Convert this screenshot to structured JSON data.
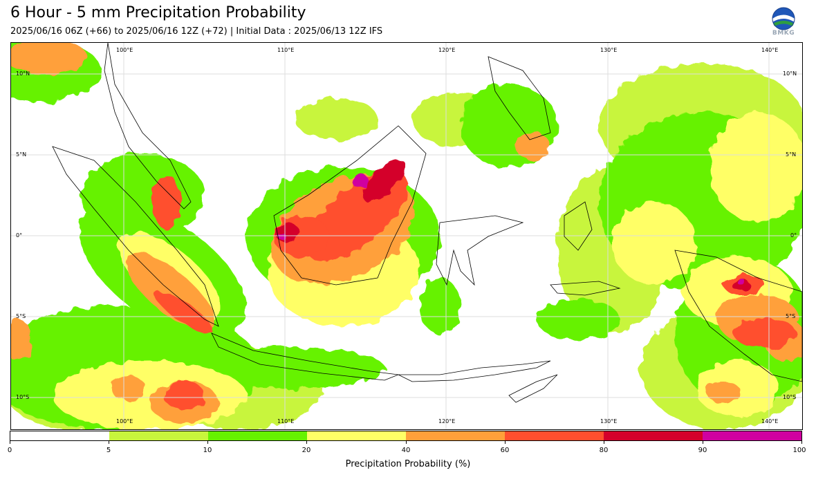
{
  "header": {
    "title": "6 Hour - 5 mm Precipitation Probability",
    "subtitle": "2025/06/16 06Z (+66) to 2025/06/16 12Z (+72) | Initial Data : 2025/06/13 12Z IFS",
    "logo_text": "BMKG"
  },
  "map": {
    "longitude_labels": [
      "100°E",
      "110°E",
      "120°E",
      "130°E",
      "140°E"
    ],
    "latitude_labels": [
      "10°N",
      "5°N",
      "0°",
      "5°S",
      "10°S"
    ]
  },
  "colorbar": {
    "label": "Precipitation Probability (%)",
    "ticks": [
      "0",
      "5",
      "10",
      "20",
      "40",
      "60",
      "80",
      "90",
      "100"
    ],
    "colors": [
      "#ffffff",
      "#c8f53c",
      "#66f200",
      "#ffff66",
      "#ffa03a",
      "#ff4f2e",
      "#d4002b",
      "#d000a0"
    ]
  }
}
